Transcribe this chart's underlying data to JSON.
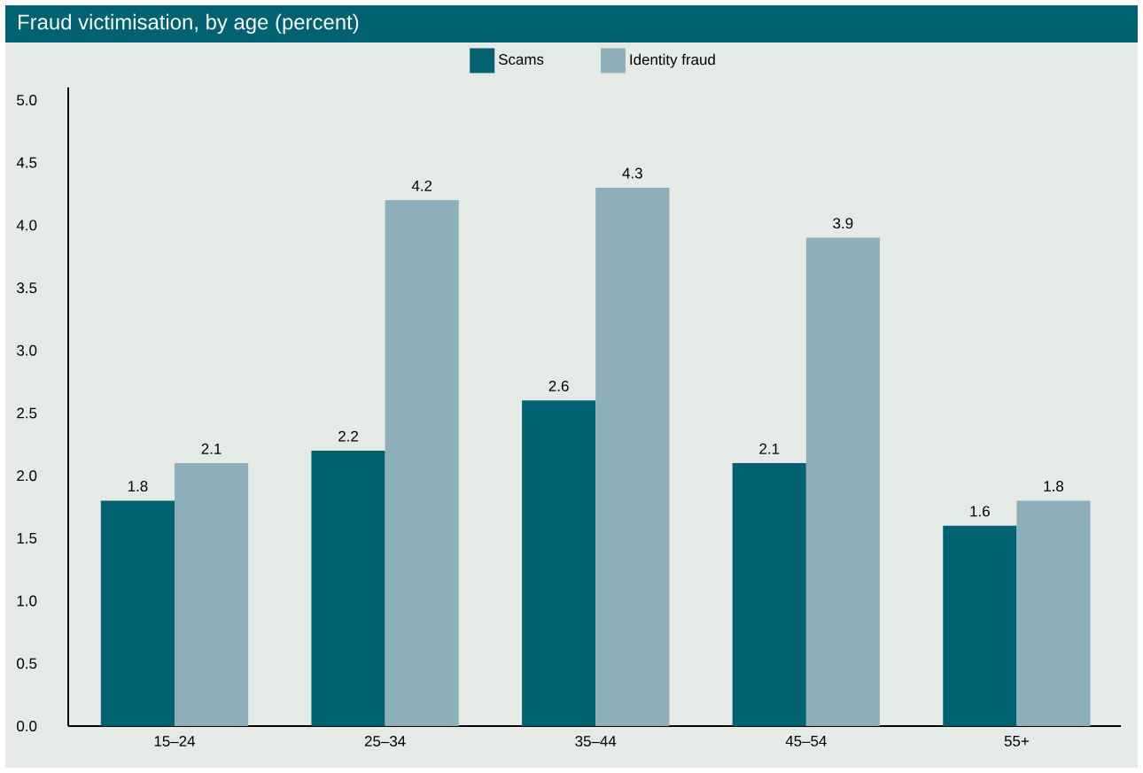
{
  "chart_data": {
    "type": "bar",
    "title": "Fraud victimisation, by age (percent)",
    "categories": [
      "15–24",
      "25–34",
      "35–44",
      "45–54",
      "55+"
    ],
    "series": [
      {
        "name": "Scams",
        "color": "#006270",
        "values": [
          1.8,
          2.2,
          2.6,
          2.1,
          1.6
        ]
      },
      {
        "name": "Identity fraud",
        "color": "#8cafba",
        "values": [
          2.1,
          4.2,
          4.3,
          3.9,
          1.8
        ]
      }
    ],
    "ylim": [
      0,
      5.1
    ],
    "yticks": [
      {
        "value": 0,
        "label": "0.0"
      },
      {
        "value": 0.5,
        "label": "0.5"
      },
      {
        "value": 1,
        "label": "1.0"
      },
      {
        "value": 1.5,
        "label": "1.5"
      },
      {
        "value": 2,
        "label": "2.0"
      },
      {
        "value": 2.5,
        "label": "2.5"
      },
      {
        "value": 3,
        "label": "3.0"
      },
      {
        "value": 3.5,
        "label": "3.5"
      },
      {
        "value": 4,
        "label": "4.0"
      },
      {
        "value": 4.5,
        "label": "4.5"
      },
      {
        "value": 5,
        "label": "5.0"
      }
    ],
    "data_labels": true,
    "legend": "top",
    "grid": false
  }
}
